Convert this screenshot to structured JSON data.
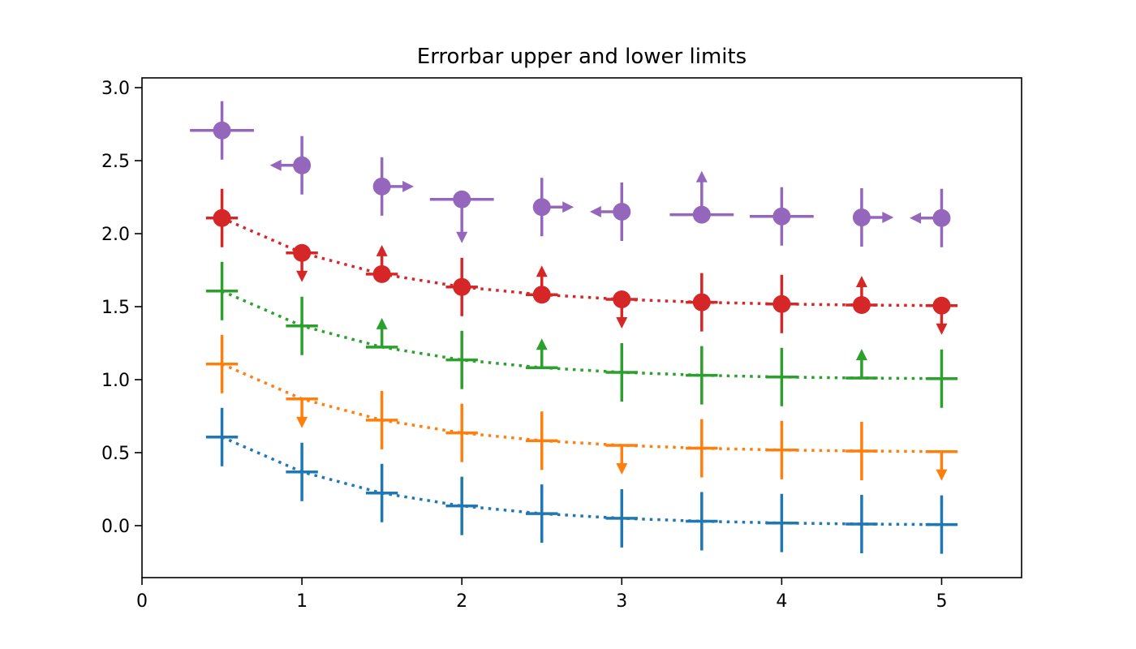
{
  "chart_data": {
    "type": "errorbar",
    "title": "Errorbar upper and lower limits",
    "xlabel": "",
    "ylabel": "",
    "xlim": [
      0,
      5.5
    ],
    "ylim": [
      -0.356,
      3.067
    ],
    "grid": false,
    "x_ticks": [
      "0",
      "1",
      "2",
      "3",
      "4",
      "5"
    ],
    "y_ticks": [
      "0.0",
      "0.5",
      "1.0",
      "1.5",
      "2.0",
      "2.5",
      "3.0"
    ],
    "x": [
      0.5,
      1.0,
      1.5,
      2.0,
      2.5,
      3.0,
      3.5,
      4.0,
      4.5,
      5.0
    ],
    "series": [
      {
        "color": "#1f77b4",
        "y": [
          0.607,
          0.368,
          0.223,
          0.135,
          0.082,
          0.05,
          0.03,
          0.018,
          0.011,
          0.007
        ],
        "xerr": 0.1,
        "yerr": [
          0.2,
          0.2,
          0.2,
          0.2,
          0.2,
          0.2,
          0.2,
          0.2,
          0.2,
          0.2
        ],
        "linestyle": "dotted",
        "marker": "none",
        "uplims": [
          0,
          0,
          0,
          0,
          0,
          0,
          0,
          0,
          0,
          0
        ],
        "lolims": [
          0,
          0,
          0,
          0,
          0,
          0,
          0,
          0,
          0,
          0
        ],
        "xuplims": [
          0,
          0,
          0,
          0,
          0,
          0,
          0,
          0,
          0,
          0
        ],
        "xlolims": [
          0,
          0,
          0,
          0,
          0,
          0,
          0,
          0,
          0,
          0
        ]
      },
      {
        "color": "#ff7f0e",
        "y": [
          1.107,
          0.868,
          0.723,
          0.635,
          0.582,
          0.55,
          0.53,
          0.518,
          0.511,
          0.507
        ],
        "xerr": 0.1,
        "yerr": [
          0.2,
          0.2,
          0.2,
          0.2,
          0.2,
          0.2,
          0.2,
          0.2,
          0.2,
          0.2
        ],
        "linestyle": "dotted",
        "marker": "none",
        "uplims": [
          0,
          1,
          0,
          0,
          0,
          1,
          0,
          0,
          0,
          1
        ],
        "lolims": [
          0,
          0,
          0,
          0,
          0,
          0,
          0,
          0,
          0,
          0
        ],
        "xuplims": [
          0,
          0,
          0,
          0,
          0,
          0,
          0,
          0,
          0,
          0
        ],
        "xlolims": [
          0,
          0,
          0,
          0,
          0,
          0,
          0,
          0,
          0,
          0
        ]
      },
      {
        "color": "#2ca02c",
        "y": [
          1.607,
          1.368,
          1.223,
          1.135,
          1.082,
          1.05,
          1.03,
          1.018,
          1.011,
          1.007
        ],
        "xerr": 0.1,
        "yerr": [
          0.2,
          0.2,
          0.2,
          0.2,
          0.2,
          0.2,
          0.2,
          0.2,
          0.2,
          0.2
        ],
        "linestyle": "dotted",
        "marker": "none",
        "uplims": [
          0,
          0,
          0,
          0,
          0,
          0,
          0,
          0,
          0,
          0
        ],
        "lolims": [
          0,
          0,
          1,
          0,
          1,
          0,
          0,
          0,
          1,
          0
        ],
        "xuplims": [
          0,
          0,
          0,
          0,
          0,
          0,
          0,
          0,
          0,
          0
        ],
        "xlolims": [
          0,
          0,
          0,
          0,
          0,
          0,
          0,
          0,
          0,
          0
        ]
      },
      {
        "color": "#d62728",
        "y": [
          2.107,
          1.868,
          1.723,
          1.635,
          1.582,
          1.55,
          1.53,
          1.518,
          1.511,
          1.507
        ],
        "xerr": 0.1,
        "yerr": [
          0.2,
          0.2,
          0.2,
          0.2,
          0.2,
          0.2,
          0.2,
          0.2,
          0.2,
          0.2
        ],
        "linestyle": "dotted",
        "marker": "o",
        "uplims": [
          0,
          1,
          0,
          0,
          0,
          1,
          0,
          0,
          0,
          1
        ],
        "lolims": [
          0,
          0,
          1,
          0,
          1,
          0,
          0,
          0,
          1,
          0
        ],
        "xuplims": [
          0,
          0,
          0,
          0,
          0,
          0,
          0,
          0,
          0,
          0
        ],
        "xlolims": [
          0,
          0,
          0,
          0,
          0,
          0,
          0,
          0,
          0,
          0
        ]
      },
      {
        "color": "#9467bd",
        "y": [
          2.707,
          2.468,
          2.323,
          2.235,
          2.182,
          2.15,
          2.13,
          2.118,
          2.111,
          2.107
        ],
        "xerr": 0.2,
        "yerr": [
          0.2,
          0.2,
          0.2,
          0.3,
          0.2,
          0.2,
          0.3,
          0.2,
          0.2,
          0.2
        ],
        "linestyle": "none",
        "marker": "o",
        "uplims": [
          0,
          0,
          0,
          1,
          0,
          0,
          0,
          0,
          0,
          0
        ],
        "lolims": [
          0,
          0,
          0,
          0,
          0,
          0,
          1,
          0,
          0,
          0
        ],
        "xuplims": [
          0,
          1,
          0,
          0,
          0,
          1,
          0,
          0,
          0,
          1
        ],
        "xlolims": [
          0,
          0,
          1,
          0,
          1,
          0,
          0,
          0,
          1,
          0
        ]
      }
    ]
  }
}
